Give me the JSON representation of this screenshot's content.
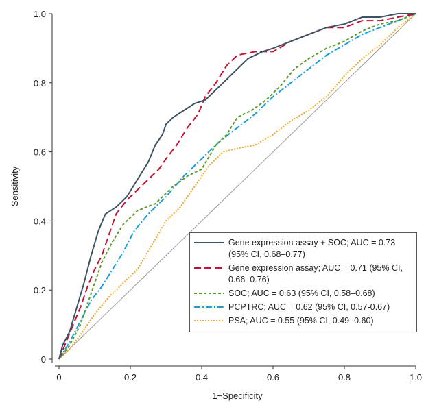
{
  "chart_data": {
    "type": "line",
    "x_label": "1−Specificity",
    "y_label": "Sensitivity",
    "xlim": [
      0,
      1
    ],
    "ylim": [
      0,
      1
    ],
    "xticks": [
      0,
      0.2,
      0.4,
      0.6,
      0.8,
      {
        "value": 1,
        "label": "1.0"
      }
    ],
    "yticks": [
      0,
      0.2,
      0.4,
      0.6,
      0.8,
      {
        "value": 1,
        "label": "1.0"
      }
    ],
    "reference_line": true,
    "series": [
      {
        "name": "Gene expression assay + SOC; AUC = 0.73 (95% CI, 0.68–0.77)",
        "color": "#3d5366",
        "line_style": "solid",
        "x": [
          0,
          0.01,
          0.03,
          0.05,
          0.07,
          0.09,
          0.11,
          0.13,
          0.16,
          0.19,
          0.22,
          0.25,
          0.27,
          0.29,
          0.3,
          0.32,
          0.35,
          0.38,
          0.41,
          0.44,
          0.47,
          0.5,
          0.53,
          0.57,
          0.6,
          0.65,
          0.7,
          0.75,
          0.8,
          0.85,
          0.9,
          0.95,
          1
        ],
        "values": [
          0,
          0.04,
          0.08,
          0.15,
          0.22,
          0.3,
          0.37,
          0.42,
          0.44,
          0.47,
          0.52,
          0.57,
          0.62,
          0.65,
          0.68,
          0.7,
          0.72,
          0.74,
          0.75,
          0.78,
          0.81,
          0.84,
          0.87,
          0.89,
          0.9,
          0.92,
          0.94,
          0.96,
          0.97,
          0.99,
          0.99,
          1,
          1
        ]
      },
      {
        "name": "Gene expression assay; AUC = 0.71 (95% CI, 0.66–0.76)",
        "color": "#c41230",
        "line_style": "dashed",
        "x": [
          0,
          0.02,
          0.04,
          0.06,
          0.08,
          0.1,
          0.12,
          0.14,
          0.16,
          0.19,
          0.22,
          0.25,
          0.28,
          0.3,
          0.33,
          0.36,
          0.39,
          0.41,
          0.44,
          0.47,
          0.5,
          0.55,
          0.6,
          0.65,
          0.7,
          0.75,
          0.8,
          0.85,
          0.9,
          0.95,
          1
        ],
        "values": [
          0,
          0.05,
          0.1,
          0.15,
          0.21,
          0.26,
          0.3,
          0.36,
          0.42,
          0.46,
          0.49,
          0.52,
          0.55,
          0.58,
          0.62,
          0.67,
          0.71,
          0.76,
          0.8,
          0.85,
          0.88,
          0.89,
          0.89,
          0.92,
          0.94,
          0.96,
          0.96,
          0.98,
          0.98,
          0.99,
          1
        ]
      },
      {
        "name": "SOC; AUC = 0.63 (95% CI, 0.58–0.68)",
        "color": "#5a9a2a",
        "line_style": "short-dashed",
        "x": [
          0,
          0.03,
          0.06,
          0.08,
          0.1,
          0.12,
          0.15,
          0.18,
          0.22,
          0.27,
          0.32,
          0.36,
          0.4,
          0.44,
          0.47,
          0.5,
          0.54,
          0.58,
          0.62,
          0.66,
          0.7,
          0.75,
          0.8,
          0.85,
          0.9,
          0.95,
          1
        ],
        "values": [
          0,
          0.04,
          0.1,
          0.16,
          0.22,
          0.28,
          0.34,
          0.39,
          0.43,
          0.45,
          0.5,
          0.53,
          0.55,
          0.62,
          0.65,
          0.7,
          0.72,
          0.75,
          0.79,
          0.84,
          0.87,
          0.9,
          0.92,
          0.95,
          0.97,
          0.98,
          1
        ]
      },
      {
        "name": "PCPTRC; AUC = 0.62 (95% CI, 0.57-0.67)",
        "color": "#1a9ed9",
        "line_style": "dash-dot",
        "x": [
          0,
          0.03,
          0.06,
          0.09,
          0.12,
          0.15,
          0.18,
          0.21,
          0.25,
          0.3,
          0.35,
          0.4,
          0.45,
          0.5,
          0.55,
          0.6,
          0.65,
          0.7,
          0.75,
          0.8,
          0.85,
          0.9,
          0.95,
          1
        ],
        "values": [
          0,
          0.05,
          0.11,
          0.17,
          0.21,
          0.26,
          0.31,
          0.37,
          0.42,
          0.47,
          0.53,
          0.58,
          0.63,
          0.67,
          0.71,
          0.76,
          0.8,
          0.84,
          0.88,
          0.91,
          0.94,
          0.96,
          0.98,
          1
        ]
      },
      {
        "name": "PSA; AUC = 0.55 (95% CI, 0.49–0.60)",
        "color": "#f5a623",
        "line_style": "dotted",
        "x": [
          0,
          0.03,
          0.06,
          0.1,
          0.14,
          0.18,
          0.22,
          0.26,
          0.3,
          0.34,
          0.38,
          0.42,
          0.46,
          0.5,
          0.55,
          0.6,
          0.65,
          0.7,
          0.75,
          0.8,
          0.85,
          0.9,
          0.95,
          1
        ],
        "values": [
          0,
          0.03,
          0.07,
          0.13,
          0.18,
          0.22,
          0.26,
          0.33,
          0.4,
          0.44,
          0.5,
          0.56,
          0.6,
          0.61,
          0.62,
          0.65,
          0.69,
          0.72,
          0.76,
          0.82,
          0.87,
          0.91,
          0.96,
          1
        ]
      }
    ]
  }
}
